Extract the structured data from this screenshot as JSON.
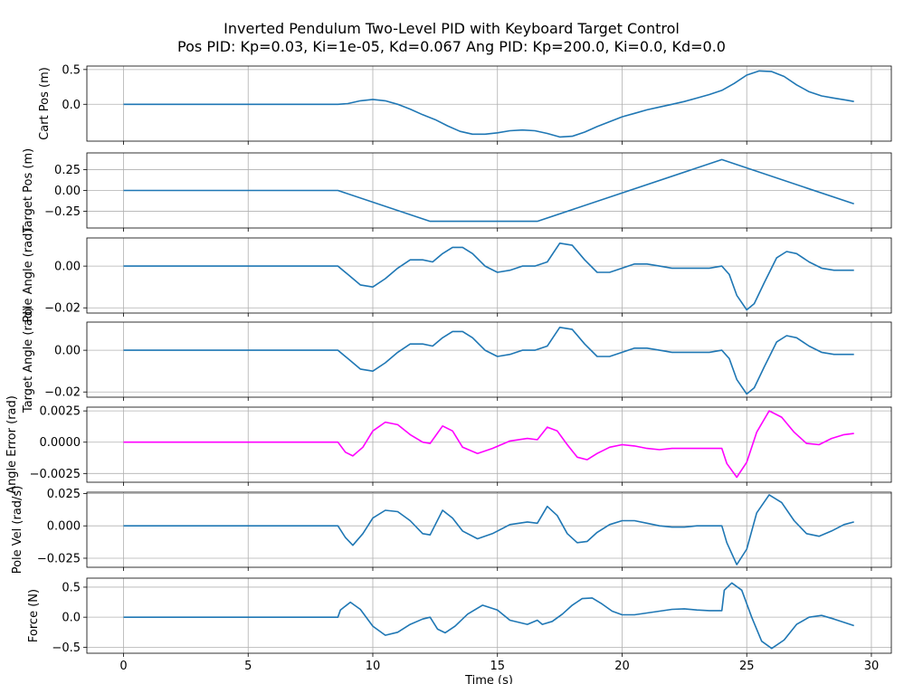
{
  "figure": {
    "title_line1": "Inverted Pendulum Two-Level PID with Keyboard Target Control",
    "title_line2": "Pos PID: Kp=0.03, Ki=1e-05, Kd=0.067    Ang PID: Kp=200.0, Ki=0.0, Kd=0.0"
  },
  "chart_data": [
    {
      "type": "line",
      "ylabel": "Cart Pos (m)",
      "xlim": [
        -1.47,
        30.8
      ],
      "ylim": [
        -0.53,
        0.55
      ],
      "yticks": [
        0.0,
        0.5
      ],
      "ytick_labels": [
        "0.0",
        "0.5"
      ],
      "color": "#1f77b4",
      "grid": true,
      "series": [
        {
          "x": [
            0,
            8.6,
            9,
            9.5,
            10,
            10.5,
            11,
            11.5,
            12,
            12.5,
            13,
            13.5,
            14,
            14.5,
            15,
            15.5,
            16,
            16.5,
            17,
            17.5,
            18,
            18.5,
            19,
            19.5,
            20,
            20.5,
            21,
            21.5,
            22,
            22.5,
            23,
            23.5,
            24,
            24.5,
            25,
            25.5,
            26,
            26.5,
            27,
            27.5,
            28,
            28.5,
            29,
            29.3
          ],
          "y": [
            0,
            0,
            0.01,
            0.05,
            0.07,
            0.05,
            0.0,
            -0.07,
            -0.15,
            -0.22,
            -0.31,
            -0.39,
            -0.43,
            -0.43,
            -0.41,
            -0.38,
            -0.37,
            -0.38,
            -0.42,
            -0.47,
            -0.46,
            -0.4,
            -0.32,
            -0.25,
            -0.18,
            -0.13,
            -0.08,
            -0.04,
            0.0,
            0.04,
            0.09,
            0.14,
            0.2,
            0.3,
            0.42,
            0.48,
            0.47,
            0.4,
            0.28,
            0.18,
            0.12,
            0.09,
            0.06,
            0.04
          ]
        }
      ]
    },
    {
      "type": "line",
      "ylabel": "Target Pos (m)",
      "xlim": [
        -1.47,
        30.8
      ],
      "ylim": [
        -0.45,
        0.45
      ],
      "yticks": [
        -0.25,
        0.0,
        0.25
      ],
      "ytick_labels": [
        "−0.25",
        "0.00",
        "0.25"
      ],
      "color": "#1f77b4",
      "grid": true,
      "series": [
        {
          "x": [
            0,
            8.6,
            12.3,
            16.6,
            24,
            29.3
          ],
          "y": [
            0,
            0,
            -0.37,
            -0.37,
            0.37,
            -0.16
          ]
        }
      ]
    },
    {
      "type": "line",
      "ylabel": "Pole Angle (rad)",
      "xlim": [
        -1.47,
        30.8
      ],
      "ylim": [
        -0.0225,
        0.0135
      ],
      "yticks": [
        -0.02,
        0.0
      ],
      "ytick_labels": [
        "−0.02",
        "0.00"
      ],
      "color": "#1f77b4",
      "grid": true,
      "series": [
        {
          "x": [
            0,
            8.6,
            9,
            9.5,
            10,
            10.5,
            11,
            11.5,
            12,
            12.4,
            12.8,
            13.2,
            13.6,
            14,
            14.5,
            15,
            15.5,
            16,
            16.5,
            17,
            17.5,
            18,
            18.5,
            19,
            19.5,
            20,
            20.5,
            21,
            21.5,
            22,
            22.5,
            23,
            23.5,
            24,
            24.3,
            24.6,
            25,
            25.3,
            25.7,
            26.2,
            26.6,
            27,
            27.5,
            28,
            28.5,
            29,
            29.3
          ],
          "y": [
            0,
            0,
            -0.004,
            -0.009,
            -0.01,
            -0.006,
            -0.001,
            0.003,
            0.003,
            0.002,
            0.006,
            0.009,
            0.009,
            0.006,
            0.0,
            -0.003,
            -0.002,
            0.0,
            0.0,
            0.002,
            0.011,
            0.01,
            0.003,
            -0.003,
            -0.003,
            -0.001,
            0.001,
            0.001,
            0.0,
            -0.001,
            -0.001,
            -0.001,
            -0.001,
            0.0,
            -0.004,
            -0.014,
            -0.021,
            -0.018,
            -0.008,
            0.004,
            0.007,
            0.006,
            0.002,
            -0.001,
            -0.002,
            -0.002,
            -0.002
          ]
        }
      ]
    },
    {
      "type": "line",
      "ylabel": "Target Angle (rad)",
      "xlim": [
        -1.47,
        30.8
      ],
      "ylim": [
        -0.0225,
        0.0135
      ],
      "yticks": [
        -0.02,
        0.0
      ],
      "ytick_labels": [
        "−0.02",
        "0.00"
      ],
      "color": "#1f77b4",
      "grid": true,
      "series": [
        {
          "x": [
            0,
            8.6,
            9,
            9.5,
            10,
            10.5,
            11,
            11.5,
            12,
            12.4,
            12.8,
            13.2,
            13.6,
            14,
            14.5,
            15,
            15.5,
            16,
            16.5,
            17,
            17.5,
            18,
            18.5,
            19,
            19.5,
            20,
            20.5,
            21,
            21.5,
            22,
            22.5,
            23,
            23.5,
            24,
            24.3,
            24.6,
            25,
            25.3,
            25.7,
            26.2,
            26.6,
            27,
            27.5,
            28,
            28.5,
            29,
            29.3
          ],
          "y": [
            0,
            0,
            -0.004,
            -0.009,
            -0.01,
            -0.006,
            -0.001,
            0.003,
            0.003,
            0.002,
            0.006,
            0.009,
            0.009,
            0.006,
            0.0,
            -0.003,
            -0.002,
            0.0,
            0.0,
            0.002,
            0.011,
            0.01,
            0.003,
            -0.003,
            -0.003,
            -0.001,
            0.001,
            0.001,
            0.0,
            -0.001,
            -0.001,
            -0.001,
            -0.001,
            0.0,
            -0.004,
            -0.014,
            -0.021,
            -0.018,
            -0.008,
            0.004,
            0.007,
            0.006,
            0.002,
            -0.001,
            -0.002,
            -0.002,
            -0.002
          ]
        }
      ]
    },
    {
      "type": "line",
      "ylabel": "Angle Error (rad)",
      "xlim": [
        -1.47,
        30.8
      ],
      "ylim": [
        -0.0032,
        0.0028
      ],
      "yticks": [
        -0.0025,
        0.0,
        0.0025
      ],
      "ytick_labels": [
        "−0.0025",
        "0.0000",
        "0.0025"
      ],
      "color": "#ff00ff",
      "grid": true,
      "series": [
        {
          "x": [
            0,
            8.6,
            8.9,
            9.2,
            9.6,
            10,
            10.5,
            11,
            11.5,
            12,
            12.3,
            12.8,
            13.2,
            13.6,
            14.2,
            14.8,
            15.5,
            16.2,
            16.6,
            17,
            17.4,
            17.8,
            18.2,
            18.6,
            19,
            19.5,
            20,
            20.5,
            21,
            21.5,
            22,
            22.5,
            23,
            23.5,
            24,
            24.2,
            24.6,
            25,
            25.4,
            25.9,
            26.4,
            26.9,
            27.4,
            27.9,
            28.4,
            28.9,
            29.3
          ],
          "y": [
            0,
            0,
            -0.0008,
            -0.0011,
            -0.0004,
            0.0009,
            0.0016,
            0.0014,
            0.0006,
            0.0,
            -0.0001,
            0.0013,
            0.0009,
            -0.0004,
            -0.0009,
            -0.0005,
            0.0001,
            0.0003,
            0.0002,
            0.0012,
            0.0009,
            -0.0002,
            -0.0012,
            -0.0014,
            -0.0009,
            -0.0004,
            -0.0002,
            -0.0003,
            -0.0005,
            -0.0006,
            -0.0005,
            -0.0005,
            -0.0005,
            -0.0005,
            -0.0005,
            -0.0017,
            -0.0028,
            -0.0016,
            0.0008,
            0.0025,
            0.002,
            0.0008,
            -0.0001,
            -0.0002,
            0.0003,
            0.0006,
            0.0007
          ]
        }
      ]
    },
    {
      "type": "line",
      "ylabel": "Pole Vel (rad/s)",
      "xlim": [
        -1.47,
        30.8
      ],
      "ylim": [
        -0.032,
        0.026
      ],
      "yticks": [
        -0.025,
        0.0,
        0.025
      ],
      "ytick_labels": [
        "−0.025",
        "0.000",
        "0.025"
      ],
      "color": "#1f77b4",
      "grid": true,
      "series": [
        {
          "x": [
            0,
            8.6,
            8.9,
            9.2,
            9.6,
            10,
            10.5,
            11,
            11.5,
            12,
            12.3,
            12.8,
            13.2,
            13.6,
            14.2,
            14.8,
            15.5,
            16.2,
            16.6,
            17,
            17.4,
            17.8,
            18.2,
            18.6,
            19,
            19.5,
            20,
            20.5,
            21,
            21.5,
            22,
            22.5,
            23,
            23.5,
            24,
            24.2,
            24.6,
            25,
            25.4,
            25.9,
            26.4,
            26.9,
            27.4,
            27.9,
            28.4,
            28.9,
            29.3
          ],
          "y": [
            0,
            0,
            -0.009,
            -0.015,
            -0.006,
            0.006,
            0.012,
            0.011,
            0.004,
            -0.006,
            -0.007,
            0.012,
            0.006,
            -0.004,
            -0.01,
            -0.006,
            0.001,
            0.003,
            0.002,
            0.015,
            0.008,
            -0.006,
            -0.013,
            -0.012,
            -0.005,
            0.001,
            0.004,
            0.004,
            0.002,
            0.0,
            -0.001,
            -0.001,
            0.0,
            0.0,
            0.0,
            -0.013,
            -0.03,
            -0.018,
            0.01,
            0.024,
            0.018,
            0.004,
            -0.006,
            -0.008,
            -0.004,
            0.001,
            0.003
          ]
        }
      ]
    },
    {
      "type": "line",
      "ylabel": "Force (N)",
      "xlabel": "Time (s)",
      "xlim": [
        -1.47,
        30.8
      ],
      "ylim": [
        -0.6,
        0.65
      ],
      "xticks": [
        0,
        5,
        10,
        15,
        20,
        25,
        30
      ],
      "xtick_labels": [
        "0",
        "5",
        "10",
        "15",
        "20",
        "25",
        "30"
      ],
      "yticks": [
        -0.5,
        0.0,
        0.5
      ],
      "ytick_labels": [
        "−0.5",
        "0.0",
        "0.5"
      ],
      "color": "#1f77b4",
      "grid": true,
      "series": [
        {
          "x": [
            0,
            8.6,
            8.7,
            9.1,
            9.5,
            10,
            10.5,
            11,
            11.5,
            12,
            12.3,
            12.6,
            12.9,
            13.3,
            13.8,
            14.4,
            15,
            15.5,
            16.2,
            16.6,
            16.8,
            17.2,
            17.6,
            18,
            18.4,
            18.8,
            19.2,
            19.6,
            20,
            20.5,
            21,
            21.5,
            22,
            22.5,
            23,
            23.5,
            24,
            24.1,
            24.4,
            24.8,
            25.2,
            25.6,
            26,
            26.5,
            27,
            27.5,
            28,
            28.5,
            29,
            29.3
          ],
          "y": [
            0,
            0,
            0.12,
            0.25,
            0.13,
            -0.15,
            -0.3,
            -0.25,
            -0.12,
            -0.03,
            0.0,
            -0.2,
            -0.26,
            -0.15,
            0.05,
            0.2,
            0.12,
            -0.05,
            -0.12,
            -0.05,
            -0.12,
            -0.07,
            0.05,
            0.2,
            0.31,
            0.32,
            0.22,
            0.1,
            0.04,
            0.04,
            0.07,
            0.1,
            0.13,
            0.14,
            0.12,
            0.11,
            0.11,
            0.45,
            0.57,
            0.45,
            0.0,
            -0.4,
            -0.52,
            -0.38,
            -0.12,
            0.0,
            0.03,
            -0.03,
            -0.1,
            -0.14
          ]
        }
      ]
    }
  ]
}
